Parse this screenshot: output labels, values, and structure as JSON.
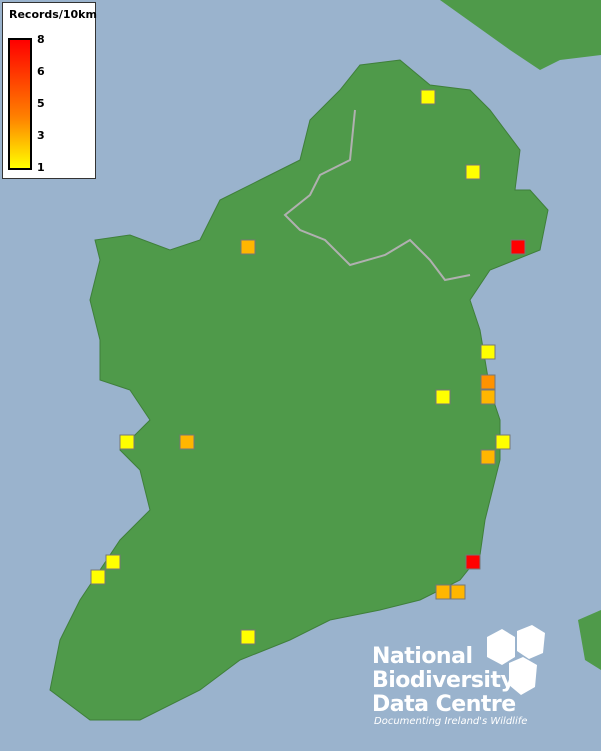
{
  "legend": {
    "title": "Records/10km",
    "ticks": [
      "8",
      "6",
      "5",
      "3",
      "1"
    ],
    "color_low": "#ffff00",
    "color_high": "#ff0000"
  },
  "records": [
    1,
    1,
    8,
    3,
    1,
    4,
    3,
    1,
    1,
    3,
    1,
    3,
    8,
    1,
    1,
    3,
    3,
    1
  ],
  "colors": {
    "sea": "#9ab3cd",
    "land": "#4f9a4a",
    "border": "#b0b0b0"
  },
  "logo": {
    "line1": "National",
    "line2": "Biodiversity",
    "line3": "Data Centre",
    "tagline": "Documenting Ireland's Wildlife"
  }
}
